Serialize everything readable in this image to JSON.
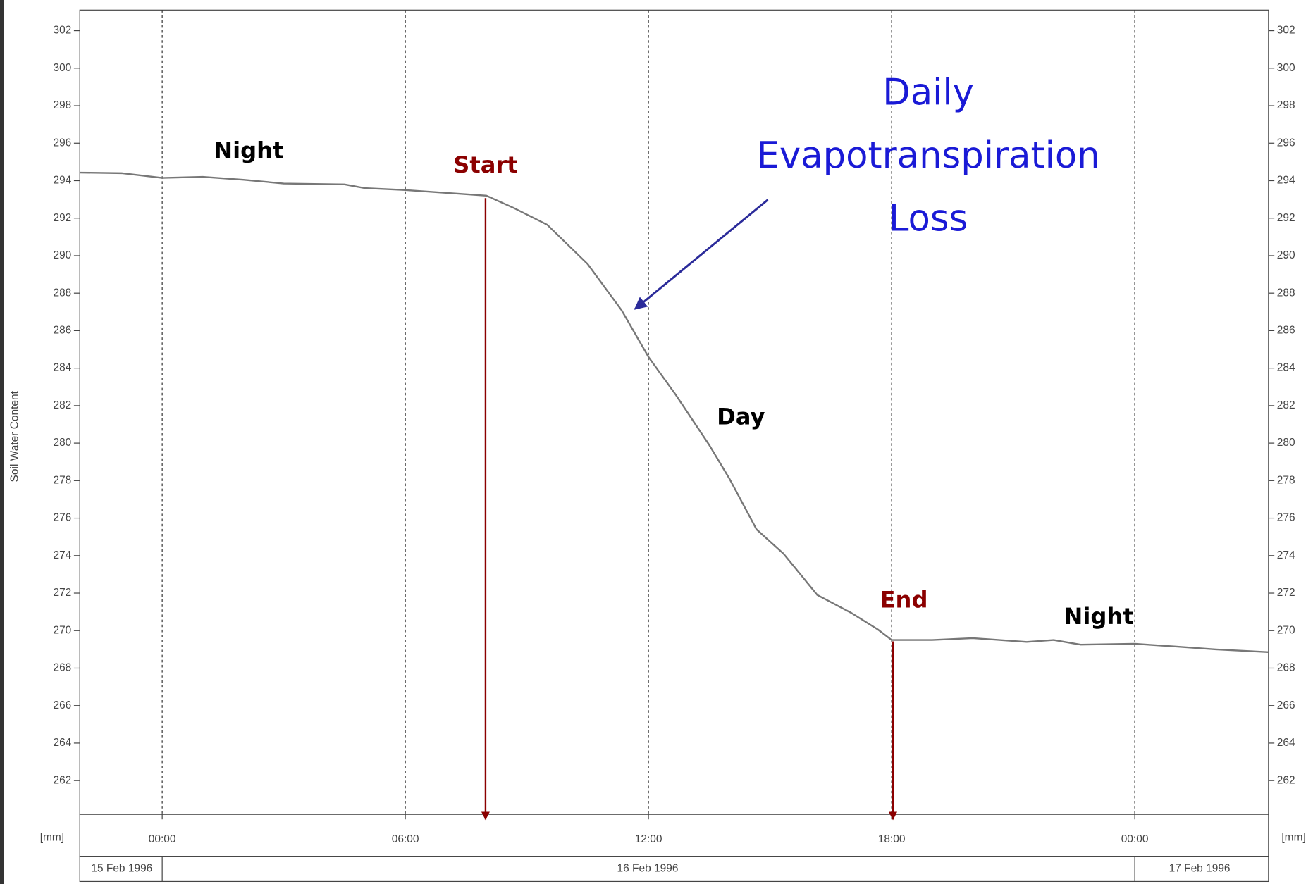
{
  "chart_data": {
    "type": "line",
    "y_label": "Soil Water Content",
    "y_unit_left": "[mm]",
    "y_unit_right": "[mm]",
    "x": [
      "1996-02-15T21:58",
      "1996-02-15T23:00",
      "1996-02-16T00:00",
      "1996-02-16T01:00",
      "1996-02-16T02:00",
      "1996-02-16T03:00",
      "1996-02-16T04:30",
      "1996-02-16T05:00",
      "1996-02-16T06:00",
      "1996-02-16T07:00",
      "1996-02-16T08:00",
      "1996-02-16T08:40",
      "1996-02-16T09:30",
      "1996-02-16T10:30",
      "1996-02-16T11:20",
      "1996-02-16T12:00",
      "1996-02-16T12:40",
      "1996-02-16T13:30",
      "1996-02-16T14:00",
      "1996-02-16T14:40",
      "1996-02-16T15:20",
      "1996-02-16T16:10",
      "1996-02-16T17:00",
      "1996-02-16T17:40",
      "1996-02-16T18:00",
      "1996-02-16T19:00",
      "1996-02-16T20:00",
      "1996-02-16T21:20",
      "1996-02-16T22:00",
      "1996-02-16T22:40",
      "1996-02-17T00:00",
      "1996-02-17T01:00",
      "1996-02-17T02:00",
      "1996-02-17T03:18"
    ],
    "values": [
      294.43,
      294.4,
      294.15,
      294.2,
      294.05,
      293.85,
      293.8,
      293.6,
      293.5,
      293.35,
      293.2,
      292.55,
      291.65,
      289.55,
      287.1,
      284.6,
      282.6,
      279.9,
      278.1,
      275.4,
      274.1,
      271.9,
      270.95,
      270.05,
      269.5,
      269.5,
      269.6,
      269.4,
      269.5,
      269.25,
      269.3,
      269.15,
      269.0,
      268.85
    ],
    "color": "#777777",
    "xlim": [
      "1996-02-15T21:58",
      "1996-02-17T03:18"
    ],
    "xticks": [
      {
        "value": "1996-02-16T00:00",
        "label": "00:00"
      },
      {
        "value": "1996-02-16T06:00",
        "label": "06:00"
      },
      {
        "value": "1996-02-16T12:00",
        "label": "12:00"
      },
      {
        "value": "1996-02-16T18:00",
        "label": "18:00"
      },
      {
        "value": "1996-02-17T00:00",
        "label": "00:00"
      }
    ],
    "date_labels": [
      "15 Feb 1996",
      "16 Feb 1996",
      "17 Feb 1996"
    ],
    "ylim": [
      260.2,
      303.1
    ],
    "yticks": [
      262,
      264,
      266,
      268,
      270,
      272,
      274,
      276,
      278,
      280,
      282,
      284,
      286,
      288,
      290,
      292,
      294,
      296,
      298,
      300,
      302
    ],
    "grid": true,
    "annotations": {
      "night1": "Night",
      "start": "Start",
      "day": "Day",
      "end": "End",
      "night2": "Night",
      "loss": [
        "Daily",
        "Evapotranspiration",
        "Loss"
      ]
    }
  }
}
